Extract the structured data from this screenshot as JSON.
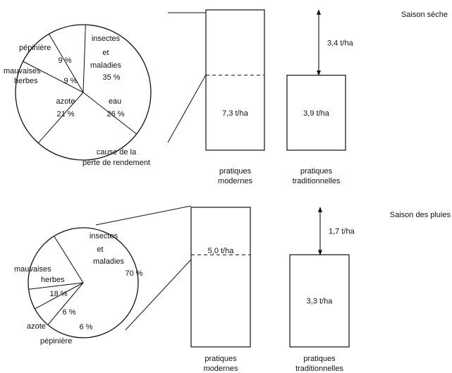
{
  "chart_data": [
    {
      "type": "pie",
      "season": "Saison sèche",
      "caption": "cause de la perte de rendement",
      "caption_lines": [
        "cause de la",
        "perte de rendement"
      ],
      "slices": [
        {
          "name": "insectes et maladies",
          "name_lines": [
            "insectes",
            "et",
            "maladies"
          ],
          "value": 35,
          "label": "35 %"
        },
        {
          "name": "eau",
          "name_lines": [
            "eau"
          ],
          "value": 26,
          "label": "26 %"
        },
        {
          "name": "azote",
          "name_lines": [
            "azote"
          ],
          "value": 21,
          "label": "21 %"
        },
        {
          "name": "mauvaises herbes",
          "name_lines": [
            "mauvaises",
            "herbes"
          ],
          "value": 9,
          "label": "9 %"
        },
        {
          "name": "pépinière",
          "name_lines": [
            "pépinière"
          ],
          "value": 9,
          "label": "9 %"
        }
      ],
      "bars": {
        "type": "bar",
        "categories": [
          "pratiques modernes",
          "pratiques traditionnelles"
        ],
        "category_lines": [
          [
            "pratiques",
            "modernes"
          ],
          [
            "pratiques",
            "traditionnelles"
          ]
        ],
        "values": [
          7.3,
          3.9
        ],
        "value_labels": [
          "7,3 t/ha",
          "3,9 t/ha"
        ],
        "gap": 3.4,
        "gap_label": "3,4 t/ha",
        "unit": "t/ha"
      }
    },
    {
      "type": "pie",
      "season": "Saison des pluies",
      "slices": [
        {
          "name": "insectes et maladies",
          "name_lines": [
            "insectes",
            "et",
            "maladies"
          ],
          "value": 70,
          "label": "70 %"
        },
        {
          "name": "pépinière",
          "name_lines": [
            "pépinière"
          ],
          "value": 6,
          "label": "6 %"
        },
        {
          "name": "azote",
          "name_lines": [
            "azote"
          ],
          "value": 6,
          "label": "6 %"
        },
        {
          "name": "mauvaises herbes",
          "name_lines": [
            "mauvaises",
            "herbes"
          ],
          "value": 18,
          "label": "18 %"
        }
      ],
      "bars": {
        "type": "bar",
        "categories": [
          "pratiques modernes",
          "pratiques traditionnelles"
        ],
        "category_lines": [
          [
            "pratiques",
            "modernes"
          ],
          [
            "pratiques",
            "traditionnelles"
          ]
        ],
        "values": [
          5.0,
          3.3
        ],
        "value_labels": [
          "5,0 t/ha",
          "3,3 t/ha"
        ],
        "gap": 1.7,
        "gap_label": "1,7 t/ha",
        "unit": "t/ha"
      }
    }
  ]
}
